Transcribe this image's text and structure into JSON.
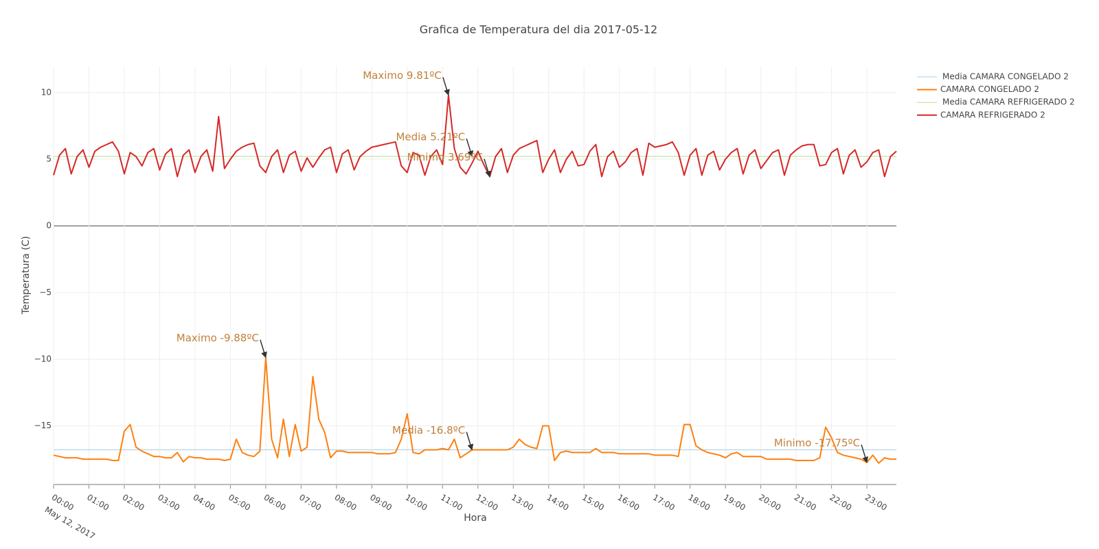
{
  "chart_data": {
    "type": "line",
    "title": "Grafica de Temperatura del dia 2017-05-12",
    "x_label": "Hora",
    "y_label": "Temperatura (C)",
    "date_label": "May 12, 2017",
    "x": [
      "00:00",
      "00:10",
      "00:20",
      "00:30",
      "00:40",
      "00:50",
      "01:00",
      "01:10",
      "01:20",
      "01:30",
      "01:40",
      "01:50",
      "02:00",
      "02:10",
      "02:20",
      "02:30",
      "02:40",
      "02:50",
      "03:00",
      "03:10",
      "03:20",
      "03:30",
      "03:40",
      "03:50",
      "04:00",
      "04:10",
      "04:20",
      "04:30",
      "04:40",
      "04:50",
      "05:00",
      "05:10",
      "05:20",
      "05:30",
      "05:40",
      "05:50",
      "06:00",
      "06:10",
      "06:20",
      "06:30",
      "06:40",
      "06:50",
      "07:00",
      "07:10",
      "07:20",
      "07:30",
      "07:40",
      "07:50",
      "08:00",
      "08:10",
      "08:20",
      "08:30",
      "08:40",
      "08:50",
      "09:00",
      "09:10",
      "09:20",
      "09:30",
      "09:40",
      "09:50",
      "10:00",
      "10:10",
      "10:20",
      "10:30",
      "10:40",
      "10:50",
      "11:00",
      "11:10",
      "11:20",
      "11:30",
      "11:40",
      "11:50",
      "12:00",
      "12:10",
      "12:20",
      "12:30",
      "12:40",
      "12:50",
      "13:00",
      "13:10",
      "13:20",
      "13:30",
      "13:40",
      "13:50",
      "14:00",
      "14:10",
      "14:20",
      "14:30",
      "14:40",
      "14:50",
      "15:00",
      "15:10",
      "15:20",
      "15:30",
      "15:40",
      "15:50",
      "16:00",
      "16:10",
      "16:20",
      "16:30",
      "16:40",
      "16:50",
      "17:00",
      "17:10",
      "17:20",
      "17:30",
      "17:40",
      "17:50",
      "18:00",
      "18:10",
      "18:20",
      "18:30",
      "18:40",
      "18:50",
      "19:00",
      "19:10",
      "19:20",
      "19:30",
      "19:40",
      "19:50",
      "20:00",
      "20:10",
      "20:20",
      "20:30",
      "20:40",
      "20:50",
      "21:00",
      "21:10",
      "21:20",
      "21:30",
      "21:40",
      "21:50",
      "22:00",
      "22:10",
      "22:20",
      "22:30",
      "22:40",
      "22:50",
      "23:00",
      "23:10",
      "23:20",
      "23:30",
      "23:40",
      "23:50"
    ],
    "xlim": [
      "00:00",
      "23:50"
    ],
    "xticks": [
      "00:00",
      "01:00",
      "02:00",
      "03:00",
      "04:00",
      "05:00",
      "06:00",
      "07:00",
      "08:00",
      "09:00",
      "10:00",
      "11:00",
      "12:00",
      "13:00",
      "14:00",
      "15:00",
      "16:00",
      "17:00",
      "18:00",
      "19:00",
      "20:00",
      "21:00",
      "22:00",
      "23:00"
    ],
    "ylim": [
      -19.4,
      11.95
    ],
    "yticks": [
      {
        "value": -15,
        "label": "−15"
      },
      {
        "value": -10,
        "label": "−10"
      },
      {
        "value": -5,
        "label": "−5"
      },
      0,
      5,
      10
    ],
    "grid": true,
    "legend": "top-right",
    "series": [
      {
        "name": "Media CAMARA CONGELADO 2",
        "color": "#a6cee3",
        "x": [
          "00:00",
          "23:50"
        ],
        "values": [
          -16.8,
          -16.8
        ]
      },
      {
        "name": "CAMARA CONGELADO 2",
        "color": "#ff7f0e",
        "values": [
          -17.2,
          -17.3,
          -17.4,
          -17.4,
          -17.4,
          -17.5,
          -17.5,
          -17.5,
          -17.5,
          -17.5,
          -17.6,
          -17.6,
          -15.4,
          -14.9,
          -16.6,
          -16.9,
          -17.1,
          -17.3,
          -17.3,
          -17.4,
          -17.4,
          -17.0,
          -17.7,
          -17.3,
          -17.4,
          -17.4,
          -17.5,
          -17.5,
          -17.5,
          -17.6,
          -17.5,
          -16.0,
          -17.0,
          -17.2,
          -17.3,
          -16.9,
          -9.88,
          -16.0,
          -17.4,
          -14.5,
          -17.3,
          -14.9,
          -16.9,
          -16.6,
          -11.3,
          -14.5,
          -15.5,
          -17.4,
          -16.9,
          -16.9,
          -17.0,
          -17.0,
          -17.0,
          -17.0,
          -17.0,
          -17.1,
          -17.1,
          -17.1,
          -17.0,
          -16.0,
          -14.1,
          -17.0,
          -17.1,
          -16.8,
          -16.8,
          -16.8,
          -16.7,
          -16.8,
          -16.0,
          -17.4,
          -17.1,
          -16.8,
          -16.8,
          -16.8,
          -16.8,
          -16.8,
          -16.8,
          -16.8,
          -16.6,
          -16.0,
          -16.4,
          -16.6,
          -16.7,
          -15.0,
          -15.0,
          -17.6,
          -17.0,
          -16.9,
          -17.0,
          -17.0,
          -17.0,
          -17.0,
          -16.7,
          -17.0,
          -17.0,
          -17.0,
          -17.1,
          -17.1,
          -17.1,
          -17.1,
          -17.1,
          -17.1,
          -17.2,
          -17.2,
          -17.2,
          -17.2,
          -17.3,
          -14.9,
          -14.9,
          -16.5,
          -16.8,
          -17.0,
          -17.1,
          -17.2,
          -17.4,
          -17.1,
          -17.0,
          -17.3,
          -17.3,
          -17.3,
          -17.3,
          -17.5,
          -17.5,
          -17.5,
          -17.5,
          -17.5,
          -17.6,
          -17.6,
          -17.6,
          -17.6,
          -17.4,
          -15.1,
          -15.9,
          -17.0,
          -17.2,
          -17.3,
          -17.4,
          -17.5,
          -17.75,
          -17.2,
          -17.8,
          -17.4,
          -17.5,
          -17.5
        ]
      },
      {
        "name": "Media CAMARA REFRIGERADO 2",
        "color": "#b2df8a",
        "x": [
          "00:00",
          "23:50"
        ],
        "values": [
          5.21,
          5.21
        ]
      },
      {
        "name": "CAMARA REFRIGERADO 2",
        "color": "#d62728",
        "values": [
          3.8,
          5.3,
          5.8,
          3.9,
          5.2,
          5.7,
          4.4,
          5.6,
          5.9,
          6.1,
          6.3,
          5.6,
          3.9,
          5.5,
          5.2,
          4.5,
          5.5,
          5.8,
          4.2,
          5.4,
          5.8,
          3.7,
          5.3,
          5.7,
          4.0,
          5.2,
          5.7,
          4.1,
          8.2,
          4.3,
          5.0,
          5.6,
          5.9,
          6.1,
          6.2,
          4.5,
          4.0,
          5.2,
          5.7,
          4.0,
          5.3,
          5.6,
          4.1,
          5.1,
          4.4,
          5.1,
          5.7,
          5.9,
          4.0,
          5.4,
          5.7,
          4.2,
          5.2,
          5.6,
          5.9,
          6.0,
          6.1,
          6.2,
          6.3,
          4.5,
          4.0,
          5.5,
          5.3,
          3.8,
          5.2,
          5.7,
          4.6,
          9.81,
          5.8,
          4.4,
          3.9,
          4.7,
          5.6,
          4.6,
          3.69,
          5.2,
          5.8,
          4.0,
          5.3,
          5.8,
          6.0,
          6.2,
          6.4,
          4.0,
          5.0,
          5.7,
          4.0,
          5.0,
          5.6,
          4.5,
          4.6,
          5.6,
          6.1,
          3.7,
          5.2,
          5.6,
          4.4,
          4.8,
          5.5,
          5.8,
          3.8,
          6.2,
          5.9,
          6.0,
          6.1,
          6.3,
          5.5,
          3.8,
          5.3,
          5.8,
          3.8,
          5.3,
          5.6,
          4.2,
          5.0,
          5.5,
          5.8,
          3.9,
          5.3,
          5.7,
          4.3,
          4.9,
          5.5,
          5.7,
          3.8,
          5.3,
          5.7,
          6.0,
          6.1,
          6.1,
          4.5,
          4.6,
          5.5,
          5.8,
          3.9,
          5.3,
          5.7,
          4.4,
          4.8,
          5.5,
          5.7,
          3.7,
          5.2,
          5.6
        ]
      }
    ],
    "annotations": [
      {
        "text": "Maximo 9.81ºC",
        "x": "11:10",
        "y": 9.81
      },
      {
        "text": "Media 5.21ºC",
        "x": "11:50",
        "y": 5.21
      },
      {
        "text": "Minimo 3.69ºC",
        "x": "12:20",
        "y": 3.69
      },
      {
        "text": "Maximo -9.88ºC",
        "x": "06:00",
        "y": -9.88
      },
      {
        "text": "Media -16.8ºC",
        "x": "11:50",
        "y": -16.8
      },
      {
        "text": "Minimo -17.75ºC",
        "x": "23:00",
        "y": -17.75
      }
    ]
  }
}
